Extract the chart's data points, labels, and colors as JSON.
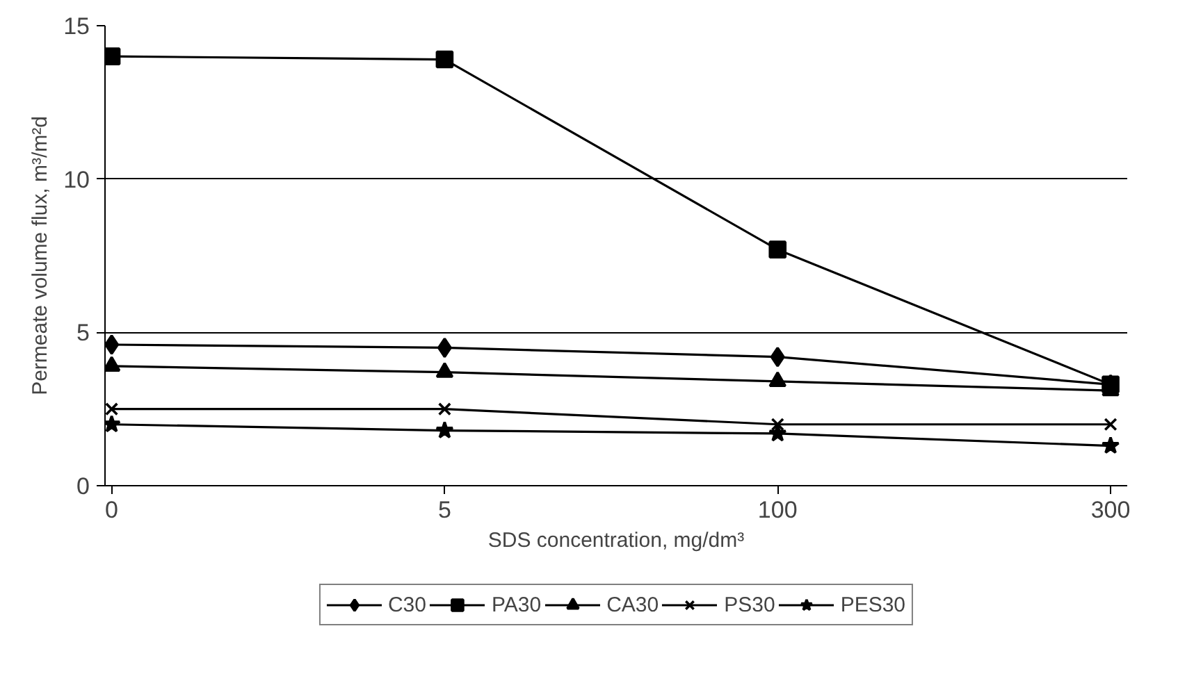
{
  "chart_data": {
    "type": "line",
    "xlabel": "SDS concentration, mg/dm³",
    "ylabel": "Permeate volume flux, m³/m²d",
    "categories": [
      "0",
      "5",
      "100",
      "300"
    ],
    "series": [
      {
        "name": "C30",
        "color": "#000000",
        "marker": "diamond",
        "values": [
          4.6,
          4.5,
          4.2,
          3.3
        ]
      },
      {
        "name": "PA30",
        "color": "#000000",
        "marker": "square",
        "values": [
          14.0,
          13.9,
          7.7,
          3.3
        ]
      },
      {
        "name": "CA30",
        "color": "#000000",
        "marker": "triangle",
        "values": [
          3.9,
          3.7,
          3.4,
          3.1
        ]
      },
      {
        "name": "PS30",
        "color": "#000000",
        "marker": "cross",
        "values": [
          2.5,
          2.5,
          2.0,
          2.0
        ]
      },
      {
        "name": "PES30",
        "color": "#000000",
        "marker": "star",
        "values": [
          2.0,
          1.8,
          1.7,
          1.3
        ]
      }
    ],
    "ylim": [
      0,
      15
    ],
    "yticks": [
      0,
      5,
      10,
      15
    ],
    "grid": "y",
    "legend": "bottom",
    "line_style": "solid"
  }
}
